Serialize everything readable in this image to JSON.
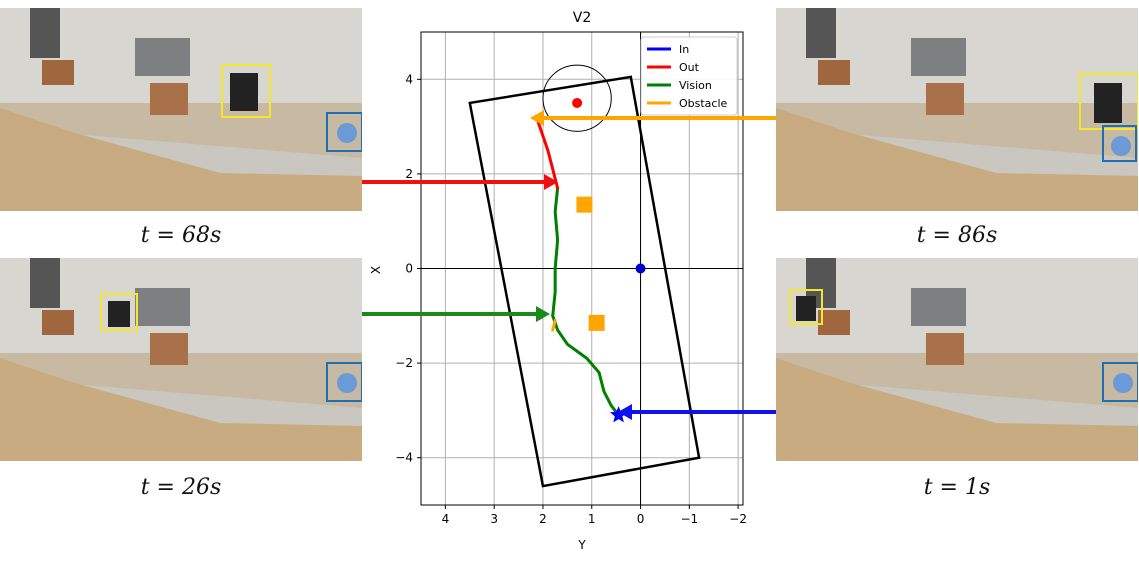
{
  "captions": {
    "top_left": "t = 68s",
    "bottom_left": "t = 26s",
    "top_right": "t = 86s",
    "bottom_right": "t = 1s"
  },
  "chart_data": {
    "type": "line",
    "title": "V2",
    "xlabel": "Y",
    "ylabel": "X",
    "xlim": [
      4.5,
      -2.1
    ],
    "ylim": [
      -5.0,
      5.0
    ],
    "xticks": [
      4,
      3,
      2,
      1,
      0,
      -1,
      -2
    ],
    "yticks": [
      4,
      2,
      0,
      -2,
      -4
    ],
    "grid": true,
    "legend_position": "top-right",
    "legend": [
      {
        "label": "In",
        "color": "#0000ff"
      },
      {
        "label": "Out",
        "color": "#ff0000"
      },
      {
        "label": "Vision",
        "color": "#008000"
      },
      {
        "label": "Obstacle",
        "color": "#ffa500"
      }
    ],
    "boundary_polygon": [
      [
        3.5,
        3.5
      ],
      [
        0.2,
        4.05
      ],
      [
        -1.2,
        -4.0
      ],
      [
        2.0,
        -4.6
      ]
    ],
    "circle": {
      "center": [
        1.3,
        3.6
      ],
      "radius": 0.7
    },
    "target_point": {
      "x": 1.3,
      "y": 3.5,
      "color": "#ff0000"
    },
    "origin_point": {
      "x": 0.0,
      "y": 0.0,
      "color": "#0000cc"
    },
    "start_star": {
      "x": 0.45,
      "y": -3.1,
      "color": "#0000ff"
    },
    "obstacles": [
      {
        "x": 1.15,
        "y": 1.35,
        "color": "#ffa500"
      },
      {
        "x": 0.9,
        "y": -1.15,
        "color": "#ffa500"
      }
    ],
    "trajectory": [
      {
        "name": "Vision",
        "color": "#008000",
        "points": [
          [
            0.45,
            -3.1
          ],
          [
            0.6,
            -2.9
          ],
          [
            0.75,
            -2.6
          ],
          [
            0.85,
            -2.2
          ],
          [
            1.1,
            -1.9
          ],
          [
            1.5,
            -1.6
          ],
          [
            1.7,
            -1.3
          ],
          [
            1.8,
            -1.0
          ]
        ]
      },
      {
        "name": "Vision",
        "color": "#008000",
        "points": [
          [
            1.8,
            -1.0
          ],
          [
            1.75,
            -0.5
          ],
          [
            1.75,
            0.0
          ],
          [
            1.7,
            0.6
          ],
          [
            1.75,
            1.2
          ],
          [
            1.7,
            1.7
          ]
        ]
      },
      {
        "name": "Out",
        "color": "#ff0000",
        "points": [
          [
            1.7,
            1.7
          ],
          [
            1.8,
            2.1
          ],
          [
            1.9,
            2.5
          ],
          [
            2.0,
            2.8
          ],
          [
            2.1,
            3.1
          ]
        ]
      },
      {
        "name": "Obstacle",
        "color": "#ffa500",
        "points": [
          [
            1.75,
            -1.1
          ],
          [
            1.8,
            -1.3
          ]
        ]
      }
    ]
  }
}
